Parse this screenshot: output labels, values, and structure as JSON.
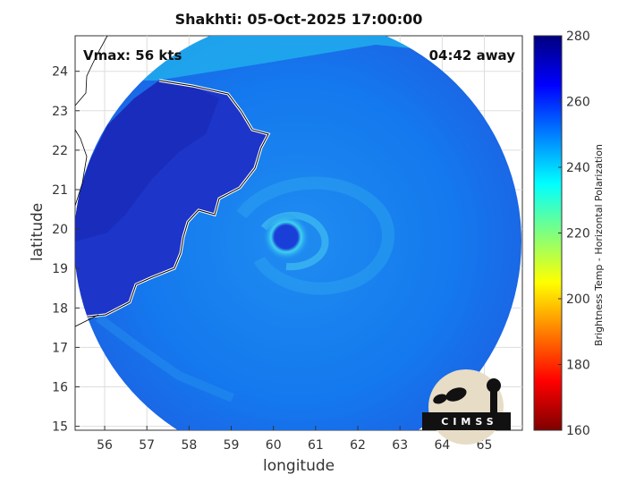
{
  "header": {
    "title": "Shakhti: 05-Oct-2025 17:00:00",
    "vmax": "Vmax: 56 kts",
    "away": "04:42 away"
  },
  "axes": {
    "xlabel": "longitude",
    "ylabel": "latitude",
    "xlim": [
      55.3,
      65.9
    ],
    "ylim": [
      14.9,
      24.9
    ],
    "xticks": [
      56,
      57,
      58,
      59,
      60,
      61,
      62,
      63,
      64,
      65
    ],
    "yticks": [
      15,
      16,
      17,
      18,
      19,
      20,
      21,
      22,
      23,
      24
    ],
    "grid": true
  },
  "storm_center": {
    "lon": 60.3,
    "lat": 19.8
  },
  "colorbar": {
    "label": "Brightness Temp - Horizontal Polarization",
    "min": 160,
    "max": 280,
    "ticks": [
      160,
      180,
      200,
      220,
      240,
      260,
      280
    ],
    "colormap": [
      "#7f0000",
      "#ff0000",
      "#ff7f00",
      "#ffff00",
      "#7fff7f",
      "#00ffff",
      "#007fff",
      "#0000ff",
      "#00007f"
    ]
  },
  "logo": {
    "text": "CIMSS"
  }
}
